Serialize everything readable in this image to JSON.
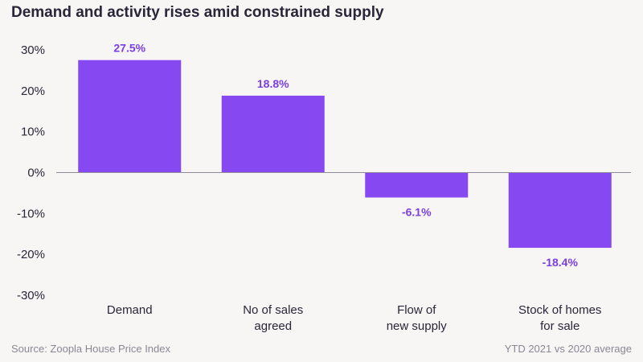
{
  "title": "Demand and activity rises amid constrained supply",
  "source": "Source: Zoopla House Price Index",
  "note": "YTD 2021 vs 2020 average",
  "colors": {
    "bar": "#8649f1",
    "data_label": "#7a3fe0",
    "axis_text": "#2a2538",
    "baseline": "#8e8a99"
  },
  "chart_data": {
    "type": "bar",
    "categories": [
      [
        "Demand"
      ],
      [
        "No of sales",
        "agreed"
      ],
      [
        "Flow of",
        "new supply"
      ],
      [
        "Stock of homes",
        "for sale"
      ]
    ],
    "values": [
      27.5,
      18.8,
      -6.1,
      -18.4
    ],
    "value_labels": [
      "27.5%",
      "18.8%",
      "-6.1%",
      "-18.4%"
    ],
    "ylim": [
      -30,
      30
    ],
    "yticks": [
      30,
      20,
      10,
      0,
      -10,
      -20,
      -30
    ],
    "ytick_labels": [
      "30%",
      "20%",
      "10%",
      "0%",
      "-10%",
      "-20%",
      "-30%"
    ],
    "grid": false,
    "legend": "none"
  }
}
